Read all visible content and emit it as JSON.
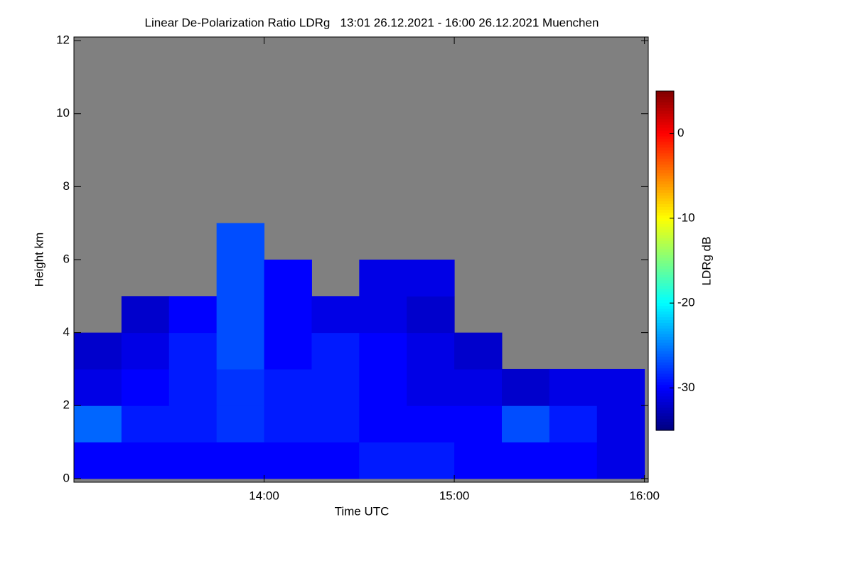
{
  "chart_data": {
    "type": "heatmap",
    "title": "Linear De-Polarization Ratio LDRg   13:01 26.12.2021 - 16:00 26.12.2021 Muenchen",
    "x_label": "Time UTC",
    "y_label": "Height km",
    "colorbar_label": "LDRg dB",
    "x": [
      13.125,
      13.375,
      13.625,
      13.875,
      14.125,
      14.375,
      14.625,
      14.875,
      15.125,
      15.375,
      15.625,
      15.875
    ],
    "y": [
      0.5,
      1.5,
      2.5,
      3.5,
      4.5,
      5.5,
      6.5,
      7.5,
      8.5,
      9.5,
      10.5,
      11.5
    ],
    "z": [
      [
        -30,
        -30,
        -30,
        -30,
        -30,
        -30,
        -29,
        -29,
        -30,
        -30,
        -30,
        -31
      ],
      [
        -26,
        -29,
        -29,
        -28,
        -29,
        -29,
        -30,
        -30,
        -30,
        -27,
        -29,
        -31
      ],
      [
        -31,
        -30,
        -29,
        -28,
        -29,
        -29,
        -30,
        -31,
        -31,
        -32,
        -31,
        -31
      ],
      [
        -32,
        -31,
        -29,
        -27,
        -30,
        -29,
        -30,
        -31,
        -32,
        null,
        null,
        null
      ],
      [
        null,
        -32,
        -30,
        -27,
        -30,
        -31,
        -31,
        -32,
        null,
        null,
        null,
        null
      ],
      [
        null,
        null,
        null,
        -27,
        -30,
        null,
        -31,
        -31,
        null,
        null,
        null,
        null
      ],
      [
        null,
        null,
        null,
        -27,
        null,
        null,
        null,
        null,
        null,
        null,
        null,
        null
      ],
      [
        null,
        null,
        null,
        null,
        null,
        null,
        null,
        null,
        null,
        null,
        null,
        null
      ],
      [
        null,
        null,
        null,
        null,
        null,
        null,
        null,
        null,
        null,
        null,
        null,
        null
      ],
      [
        null,
        null,
        null,
        null,
        null,
        null,
        null,
        null,
        null,
        null,
        null,
        null
      ],
      [
        null,
        null,
        null,
        null,
        null,
        null,
        null,
        null,
        null,
        null,
        null,
        null
      ],
      [
        null,
        null,
        null,
        null,
        null,
        null,
        null,
        null,
        null,
        null,
        null,
        null
      ]
    ],
    "xlim": [
      13.0,
      16.02
    ],
    "xticks": [
      {
        "value": 14,
        "label": "14:00"
      },
      {
        "value": 15,
        "label": "15:00"
      },
      {
        "value": 16,
        "label": "16:00"
      }
    ],
    "ylim": [
      -0.1,
      12.1
    ],
    "yticks": [
      0,
      2,
      4,
      6,
      8,
      10,
      12
    ],
    "clim": [
      -35,
      5
    ],
    "cticks": [
      0,
      -10,
      -20,
      -30
    ],
    "colormap": "jet",
    "missing_color": "#808080"
  }
}
